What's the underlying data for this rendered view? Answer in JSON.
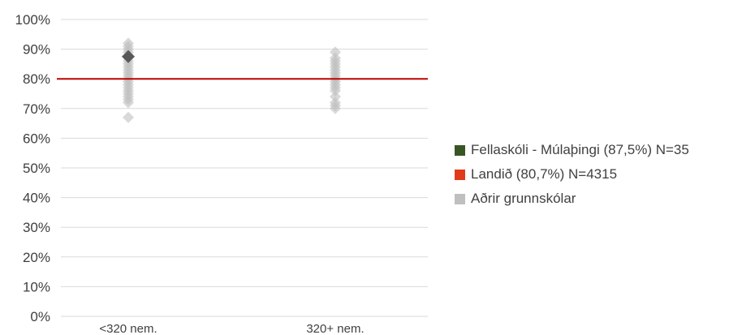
{
  "chart_data": {
    "type": "scatter",
    "title": "",
    "xlabel": "",
    "ylabel": "",
    "categories": [
      "<320 nem.",
      "320+ nem."
    ],
    "y_ticks": [
      "0%",
      "10%",
      "20%",
      "30%",
      "40%",
      "50%",
      "60%",
      "70%",
      "80%",
      "90%",
      "100%"
    ],
    "ylim": [
      0,
      100
    ],
    "grid": true,
    "legend_position": "right",
    "series": [
      {
        "name": "Fellaskóli - Múlaþingi (87,5%) N=35",
        "color": "#375623",
        "marker_color": "#595959",
        "points": [
          {
            "category": "<320 nem.",
            "y": 87.5
          }
        ]
      },
      {
        "name": "Landið (80,7%) N=4315",
        "color": "#c00000",
        "line_value": 80.7
      },
      {
        "name": "Aðrir grunnskólar",
        "color": "#bfbfbf",
        "points": [
          {
            "category": "<320 nem.",
            "y": 92
          },
          {
            "category": "<320 nem.",
            "y": 91
          },
          {
            "category": "<320 nem.",
            "y": 90
          },
          {
            "category": "<320 nem.",
            "y": 89
          },
          {
            "category": "<320 nem.",
            "y": 86
          },
          {
            "category": "<320 nem.",
            "y": 85
          },
          {
            "category": "<320 nem.",
            "y": 84
          },
          {
            "category": "<320 nem.",
            "y": 83
          },
          {
            "category": "<320 nem.",
            "y": 82
          },
          {
            "category": "<320 nem.",
            "y": 81
          },
          {
            "category": "<320 nem.",
            "y": 80
          },
          {
            "category": "<320 nem.",
            "y": 79
          },
          {
            "category": "<320 nem.",
            "y": 78
          },
          {
            "category": "<320 nem.",
            "y": 77
          },
          {
            "category": "<320 nem.",
            "y": 76
          },
          {
            "category": "<320 nem.",
            "y": 75
          },
          {
            "category": "<320 nem.",
            "y": 74
          },
          {
            "category": "<320 nem.",
            "y": 73
          },
          {
            "category": "<320 nem.",
            "y": 72
          },
          {
            "category": "<320 nem.",
            "y": 67
          },
          {
            "category": "320+ nem.",
            "y": 89
          },
          {
            "category": "320+ nem.",
            "y": 87
          },
          {
            "category": "320+ nem.",
            "y": 86
          },
          {
            "category": "320+ nem.",
            "y": 85
          },
          {
            "category": "320+ nem.",
            "y": 84
          },
          {
            "category": "320+ nem.",
            "y": 83
          },
          {
            "category": "320+ nem.",
            "y": 82
          },
          {
            "category": "320+ nem.",
            "y": 81
          },
          {
            "category": "320+ nem.",
            "y": 80
          },
          {
            "category": "320+ nem.",
            "y": 79
          },
          {
            "category": "320+ nem.",
            "y": 78
          },
          {
            "category": "320+ nem.",
            "y": 77
          },
          {
            "category": "320+ nem.",
            "y": 76
          },
          {
            "category": "320+ nem.",
            "y": 74
          },
          {
            "category": "320+ nem.",
            "y": 72
          },
          {
            "category": "320+ nem.",
            "y": 71
          },
          {
            "category": "320+ nem.",
            "y": 70
          }
        ]
      }
    ]
  }
}
